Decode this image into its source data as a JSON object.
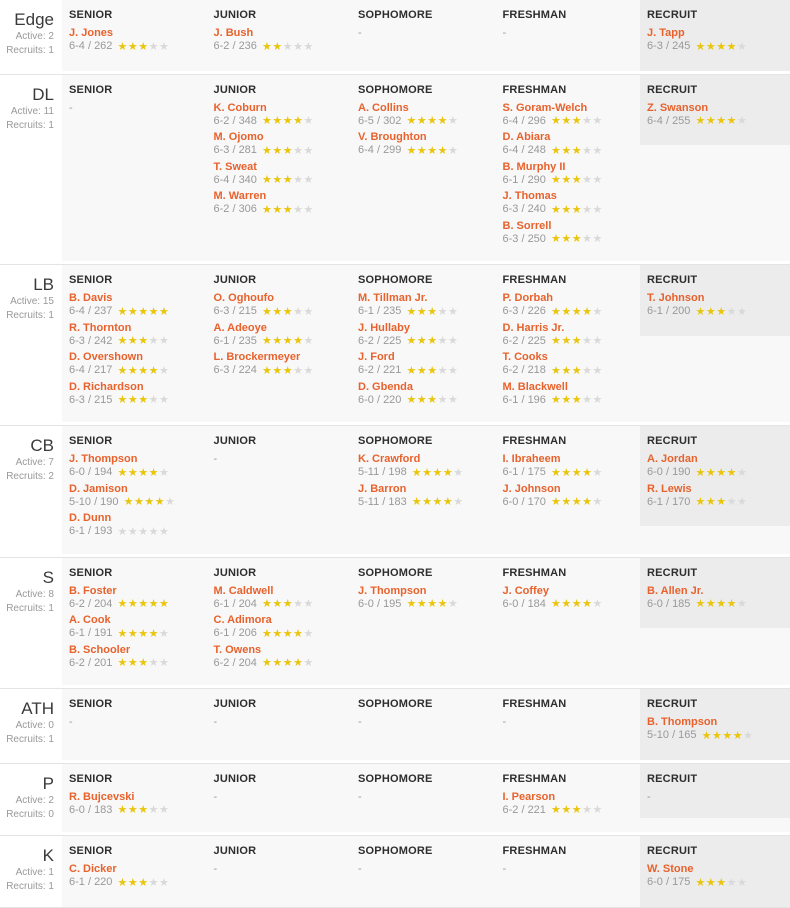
{
  "colors": {
    "accent_orange": "#e8622d",
    "star_filled": "#e9c50c",
    "star_empty": "#d9d9d9",
    "content_bg": "#f8f8f8",
    "recruit_bg": "#ececec",
    "divider": "#e4e4e4",
    "header_text": "#2e2e2e",
    "muted_text": "#999999"
  },
  "column_headers": [
    "SENIOR",
    "JUNIOR",
    "SOPHOMORE",
    "FRESHMAN",
    "RECRUIT"
  ],
  "empty_label": "-",
  "star_max": 5,
  "positions": [
    {
      "position": "Edge",
      "active_label": "Active: 2",
      "recruits_label": "Recruits: 1",
      "columns": [
        [
          {
            "name": "J. Jones",
            "measurements": "6-4 / 262",
            "stars": 3
          }
        ],
        [
          {
            "name": "J. Bush",
            "measurements": "6-2 / 236",
            "stars": 2
          }
        ],
        [],
        [],
        [
          {
            "name": "J. Tapp",
            "measurements": "6-3 / 245",
            "stars": 4
          }
        ]
      ]
    },
    {
      "position": "DL",
      "active_label": "Active: 11",
      "recruits_label": "Recruits: 1",
      "columns": [
        [],
        [
          {
            "name": "K. Coburn",
            "measurements": "6-2 / 348",
            "stars": 4
          },
          {
            "name": "M. Ojomo",
            "measurements": "6-3 / 281",
            "stars": 3
          },
          {
            "name": "T. Sweat",
            "measurements": "6-4 / 340",
            "stars": 3
          },
          {
            "name": "M. Warren",
            "measurements": "6-2 / 306",
            "stars": 3
          }
        ],
        [
          {
            "name": "A. Collins",
            "measurements": "6-5 / 302",
            "stars": 4
          },
          {
            "name": "V. Broughton",
            "measurements": "6-4 / 299",
            "stars": 4
          }
        ],
        [
          {
            "name": "S. Goram-Welch",
            "measurements": "6-4 / 296",
            "stars": 3
          },
          {
            "name": "D. Abiara",
            "measurements": "6-4 / 248",
            "stars": 3
          },
          {
            "name": "B. Murphy II",
            "measurements": "6-1 / 290",
            "stars": 3
          },
          {
            "name": "J. Thomas",
            "measurements": "6-3 / 240",
            "stars": 3
          },
          {
            "name": "B. Sorrell",
            "measurements": "6-3 / 250",
            "stars": 3
          }
        ],
        [
          {
            "name": "Z. Swanson",
            "measurements": "6-4 / 255",
            "stars": 4
          }
        ]
      ]
    },
    {
      "position": "LB",
      "active_label": "Active: 15",
      "recruits_label": "Recruits: 1",
      "columns": [
        [
          {
            "name": "B. Davis",
            "measurements": "6-4 / 237",
            "stars": 5
          },
          {
            "name": "R. Thornton",
            "measurements": "6-3 / 242",
            "stars": 3
          },
          {
            "name": "D. Overshown",
            "measurements": "6-4 / 217",
            "stars": 4
          },
          {
            "name": "D. Richardson",
            "measurements": "6-3 / 215",
            "stars": 3
          }
        ],
        [
          {
            "name": "O. Oghoufo",
            "measurements": "6-3 / 215",
            "stars": 3
          },
          {
            "name": "A. Adeoye",
            "measurements": "6-1 / 235",
            "stars": 4
          },
          {
            "name": "L. Brockermeyer",
            "measurements": "6-3 / 224",
            "stars": 3
          }
        ],
        [
          {
            "name": "M. Tillman Jr.",
            "measurements": "6-1 / 235",
            "stars": 3
          },
          {
            "name": "J. Hullaby",
            "measurements": "6-2 / 225",
            "stars": 3
          },
          {
            "name": "J. Ford",
            "measurements": "6-2 / 221",
            "stars": 3
          },
          {
            "name": "D. Gbenda",
            "measurements": "6-0 / 220",
            "stars": 3
          }
        ],
        [
          {
            "name": "P. Dorbah",
            "measurements": "6-3 / 226",
            "stars": 4
          },
          {
            "name": "D. Harris Jr.",
            "measurements": "6-2 / 225",
            "stars": 3
          },
          {
            "name": "T. Cooks",
            "measurements": "6-2 / 218",
            "stars": 3
          },
          {
            "name": "M. Blackwell",
            "measurements": "6-1 / 196",
            "stars": 3
          }
        ],
        [
          {
            "name": "T. Johnson",
            "measurements": "6-1 / 200",
            "stars": 3
          }
        ]
      ]
    },
    {
      "position": "CB",
      "active_label": "Active: 7",
      "recruits_label": "Recruits: 2",
      "columns": [
        [
          {
            "name": "J. Thompson",
            "measurements": "6-0 / 194",
            "stars": 4
          },
          {
            "name": "D. Jamison",
            "measurements": "5-10 / 190",
            "stars": 4
          },
          {
            "name": "D. Dunn",
            "measurements": "6-1 / 193",
            "stars": 0
          }
        ],
        [],
        [
          {
            "name": "K. Crawford",
            "measurements": "5-11 / 198",
            "stars": 4
          },
          {
            "name": "J. Barron",
            "measurements": "5-11 / 183",
            "stars": 4
          }
        ],
        [
          {
            "name": "I. Ibraheem",
            "measurements": "6-1 / 175",
            "stars": 4
          },
          {
            "name": "J. Johnson",
            "measurements": "6-0 / 170",
            "stars": 4
          }
        ],
        [
          {
            "name": "A. Jordan",
            "measurements": "6-0 / 190",
            "stars": 4
          },
          {
            "name": "R. Lewis",
            "measurements": "6-1 / 170",
            "stars": 3
          }
        ]
      ]
    },
    {
      "position": "S",
      "active_label": "Active: 8",
      "recruits_label": "Recruits: 1",
      "columns": [
        [
          {
            "name": "B. Foster",
            "measurements": "6-2 / 204",
            "stars": 5
          },
          {
            "name": "A. Cook",
            "measurements": "6-1 / 191",
            "stars": 4
          },
          {
            "name": "B. Schooler",
            "measurements": "6-2 / 201",
            "stars": 3
          }
        ],
        [
          {
            "name": "M. Caldwell",
            "measurements": "6-1 / 204",
            "stars": 3
          },
          {
            "name": "C. Adimora",
            "measurements": "6-1 / 206",
            "stars": 4
          },
          {
            "name": "T. Owens",
            "measurements": "6-2 / 204",
            "stars": 4
          }
        ],
        [
          {
            "name": "J. Thompson",
            "measurements": "6-0 / 195",
            "stars": 4
          }
        ],
        [
          {
            "name": "J. Coffey",
            "measurements": "6-0 / 184",
            "stars": 4
          }
        ],
        [
          {
            "name": "B. Allen Jr.",
            "measurements": "6-0 / 185",
            "stars": 4
          }
        ]
      ]
    },
    {
      "position": "ATH",
      "active_label": "Active: 0",
      "recruits_label": "Recruits: 1",
      "columns": [
        [],
        [],
        [],
        [],
        [
          {
            "name": "B. Thompson",
            "measurements": "5-10 / 165",
            "stars": 4
          }
        ]
      ]
    },
    {
      "position": "P",
      "active_label": "Active: 2",
      "recruits_label": "Recruits: 0",
      "columns": [
        [
          {
            "name": "R. Bujcevski",
            "measurements": "6-0 / 183",
            "stars": 3
          }
        ],
        [],
        [],
        [
          {
            "name": "I. Pearson",
            "measurements": "6-2 / 221",
            "stars": 3
          }
        ],
        []
      ]
    },
    {
      "position": "K",
      "active_label": "Active: 1",
      "recruits_label": "Recruits: 1",
      "columns": [
        [
          {
            "name": "C. Dicker",
            "measurements": "6-1 / 220",
            "stars": 3
          }
        ],
        [],
        [],
        [],
        [
          {
            "name": "W. Stone",
            "measurements": "6-0 / 175",
            "stars": 3
          }
        ]
      ]
    }
  ]
}
